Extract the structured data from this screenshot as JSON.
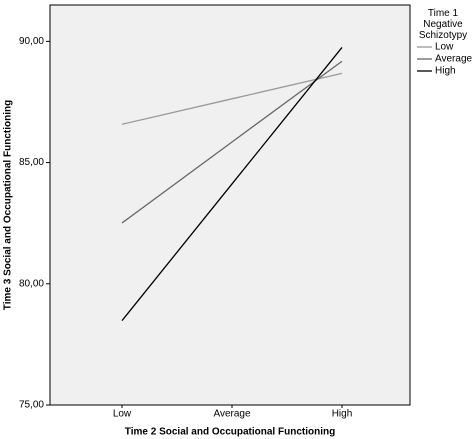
{
  "chart_data": {
    "type": "line",
    "x_label": "Time 2 Social and Occupational Functioning",
    "y_label": "Time 3 Social and Occupational Functioning",
    "legend_title": "Time 1 Negative Schizotypy",
    "legend_position": "right",
    "categories": [
      "Low",
      "Average",
      "High"
    ],
    "series": [
      {
        "name": "Low",
        "color": "#999999",
        "values": [
          86.58,
          87.63,
          88.68
        ]
      },
      {
        "name": "Average",
        "color": "#666666",
        "values": [
          82.51,
          85.85,
          89.18
        ]
      },
      {
        "name": "High",
        "color": "#000000",
        "values": [
          78.48,
          84.12,
          89.75
        ]
      }
    ],
    "ylim": [
      75,
      91.5
    ],
    "yticks": [
      {
        "value": 75,
        "label": "75,00"
      },
      {
        "value": 80,
        "label": "80,00"
      },
      {
        "value": 85,
        "label": "85,00"
      },
      {
        "value": 90,
        "label": "90,00"
      }
    ],
    "grid": false
  }
}
